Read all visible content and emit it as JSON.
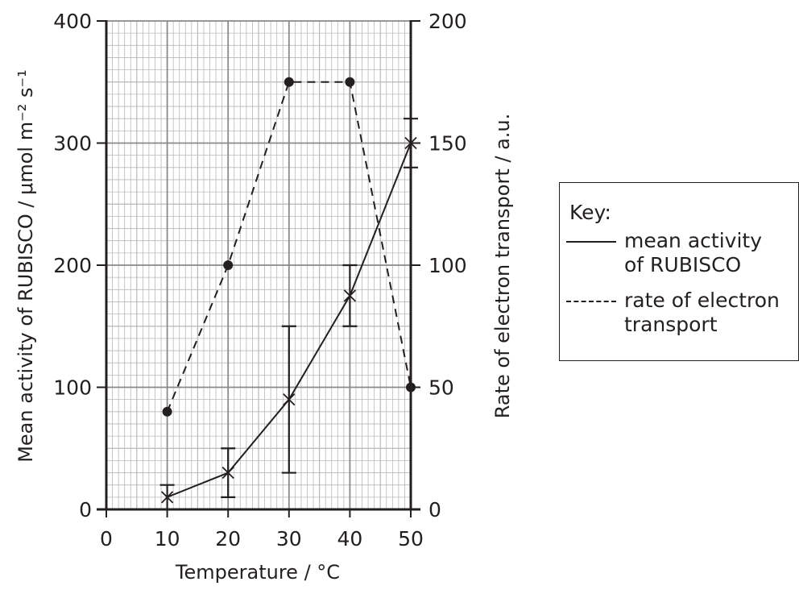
{
  "chart_data": {
    "type": "line",
    "xlabel": "Temperature / °C",
    "ylabel_left": "Mean activity of RUBISCO / μmol m⁻² s⁻¹",
    "ylabel_right": "Rate of electron transport / a.u.",
    "xlim": [
      0,
      50
    ],
    "ylim_left": [
      0,
      400
    ],
    "ylim_right": [
      0,
      200
    ],
    "x_ticks": [
      "0",
      "10",
      "20",
      "30",
      "40",
      "50"
    ],
    "y_left_ticks": [
      "0",
      "100",
      "200",
      "300",
      "400"
    ],
    "y_right_ticks": [
      "0",
      "50",
      "100",
      "150",
      "200"
    ],
    "grid": true,
    "series": [
      {
        "name": "mean activity of RUBISCO",
        "axis": "left",
        "line_style": "solid",
        "marker": "cross",
        "x": [
          10,
          20,
          30,
          40,
          50
        ],
        "y": [
          10,
          30,
          90,
          175,
          300
        ],
        "error_low": [
          0,
          10,
          30,
          150,
          280
        ],
        "error_high": [
          20,
          50,
          150,
          200,
          320
        ]
      },
      {
        "name": "rate of electron transport",
        "axis": "right",
        "line_style": "dashed",
        "marker": "dot",
        "x": [
          10,
          20,
          30,
          40,
          50
        ],
        "y": [
          40,
          100,
          175,
          175,
          50
        ]
      }
    ],
    "legend": {
      "title": "Key:",
      "position": "right",
      "entries": [
        {
          "line1": "mean activity",
          "line2": "of RUBISCO"
        },
        {
          "line1": "rate of electron",
          "line2": "transport"
        }
      ]
    }
  }
}
